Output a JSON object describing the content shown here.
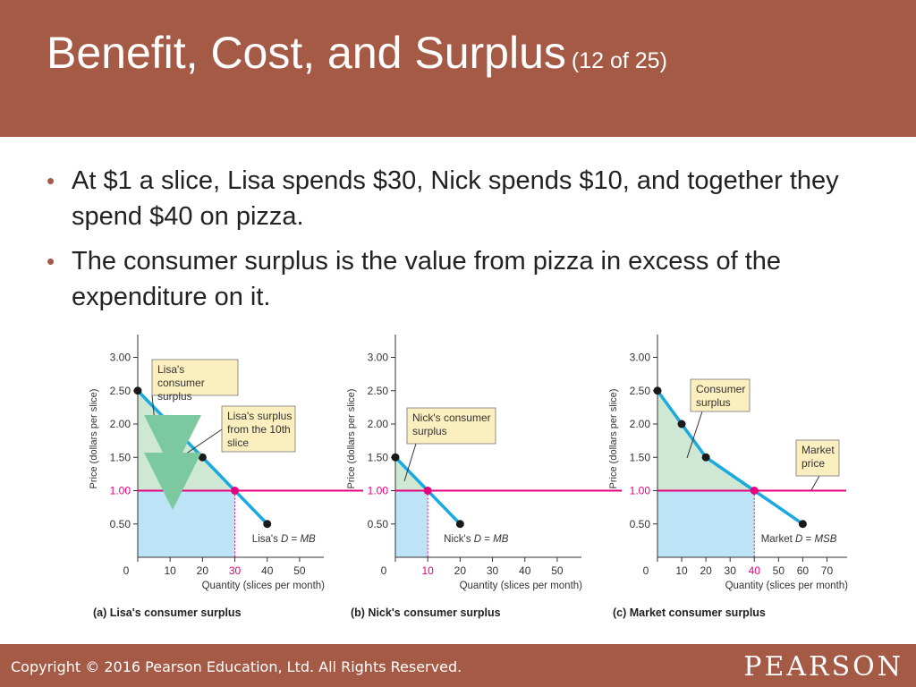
{
  "header": {
    "title": "Benefit, Cost, and Surplus",
    "subtitle": "(12 of 25)"
  },
  "bullets": [
    "At $1 a slice, Lisa spends $30, Nick spends $10, and together they spend $40 on pizza.",
    "The consumer surplus is the value from pizza in excess of the expenditure on it."
  ],
  "footer": {
    "copyright": "Copyright © 2016 Pearson Education, Ltd. All Rights Reserved.",
    "brand": "PEARSON"
  },
  "colors": {
    "header_bg": "#a55a46",
    "demand_line": "#1aa9e0",
    "price_line": "#e6007e",
    "surplus_fill": "#cfe8d4",
    "expenditure_fill": "#bde3f7",
    "arrow": "#7cc9a0",
    "callout_fill": "#fbeebf"
  },
  "chart_data": [
    {
      "type": "line",
      "caption": "(a) Lisa's consumer surplus",
      "ylabel": "Price (dollars per slice)",
      "xlabel": "Quantity (slices per month)",
      "xlim": [
        0,
        55
      ],
      "ylim": [
        0,
        3.3
      ],
      "xticks": [
        "0",
        "10",
        "20",
        "30",
        "40",
        "50"
      ],
      "xtick_values": [
        0,
        10,
        20,
        30,
        40,
        50
      ],
      "yticks": [
        "0.50",
        "1.00",
        "1.50",
        "2.00",
        "2.50",
        "3.00"
      ],
      "ytick_values": [
        0.5,
        1.0,
        1.5,
        2.0,
        2.5,
        3.0
      ],
      "highlight_x": "30",
      "highlight_y": "1.00",
      "price": 1.0,
      "demand": {
        "x": [
          0,
          10,
          20,
          30,
          40
        ],
        "y": [
          2.5,
          2.0,
          1.5,
          1.0,
          0.5
        ]
      },
      "equilibrium": {
        "x": 30,
        "y": 1.0
      },
      "line_label": "Lisa's D = MB",
      "callouts": [
        "Lisa's consumer surplus",
        "Lisa's surplus from the 10th slice"
      ]
    },
    {
      "type": "line",
      "caption": "(b) Nick's consumer surplus",
      "ylabel": "Price (dollars per slice)",
      "xlabel": "Quantity (slices per month)",
      "xlim": [
        0,
        55
      ],
      "ylim": [
        0,
        3.3
      ],
      "xticks": [
        "0",
        "10",
        "20",
        "30",
        "40",
        "50"
      ],
      "xtick_values": [
        0,
        10,
        20,
        30,
        40,
        50
      ],
      "yticks": [
        "0.50",
        "1.00",
        "1.50",
        "2.00",
        "2.50",
        "3.00"
      ],
      "ytick_values": [
        0.5,
        1.0,
        1.5,
        2.0,
        2.5,
        3.0
      ],
      "highlight_x": "10",
      "highlight_y": "1.00",
      "price": 1.0,
      "demand": {
        "x": [
          0,
          10,
          20
        ],
        "y": [
          1.5,
          1.0,
          0.5
        ]
      },
      "equilibrium": {
        "x": 10,
        "y": 1.0
      },
      "line_label": "Nick's D = MB",
      "callouts": [
        "Nick's consumer surplus"
      ]
    },
    {
      "type": "line",
      "caption": "(c) Market consumer surplus",
      "ylabel": "Price (dollars per slice)",
      "xlabel": "Quantity (slices per month)",
      "xlim": [
        0,
        75
      ],
      "ylim": [
        0,
        3.3
      ],
      "xticks": [
        "0",
        "10",
        "20",
        "30",
        "40",
        "50",
        "60",
        "70"
      ],
      "xtick_values": [
        0,
        10,
        20,
        30,
        40,
        50,
        60,
        70
      ],
      "yticks": [
        "0.50",
        "1.00",
        "1.50",
        "2.00",
        "2.50",
        "3.00"
      ],
      "ytick_values": [
        0.5,
        1.0,
        1.5,
        2.0,
        2.5,
        3.0
      ],
      "highlight_x": "40",
      "highlight_y": "1.00",
      "price": 1.0,
      "demand": {
        "x": [
          0,
          10,
          20,
          40,
          60
        ],
        "y": [
          2.5,
          2.0,
          1.5,
          1.0,
          0.5
        ]
      },
      "equilibrium": {
        "x": 40,
        "y": 1.0
      },
      "line_label": "Market D = MSB",
      "callouts": [
        "Consumer surplus",
        "Market price"
      ]
    }
  ]
}
